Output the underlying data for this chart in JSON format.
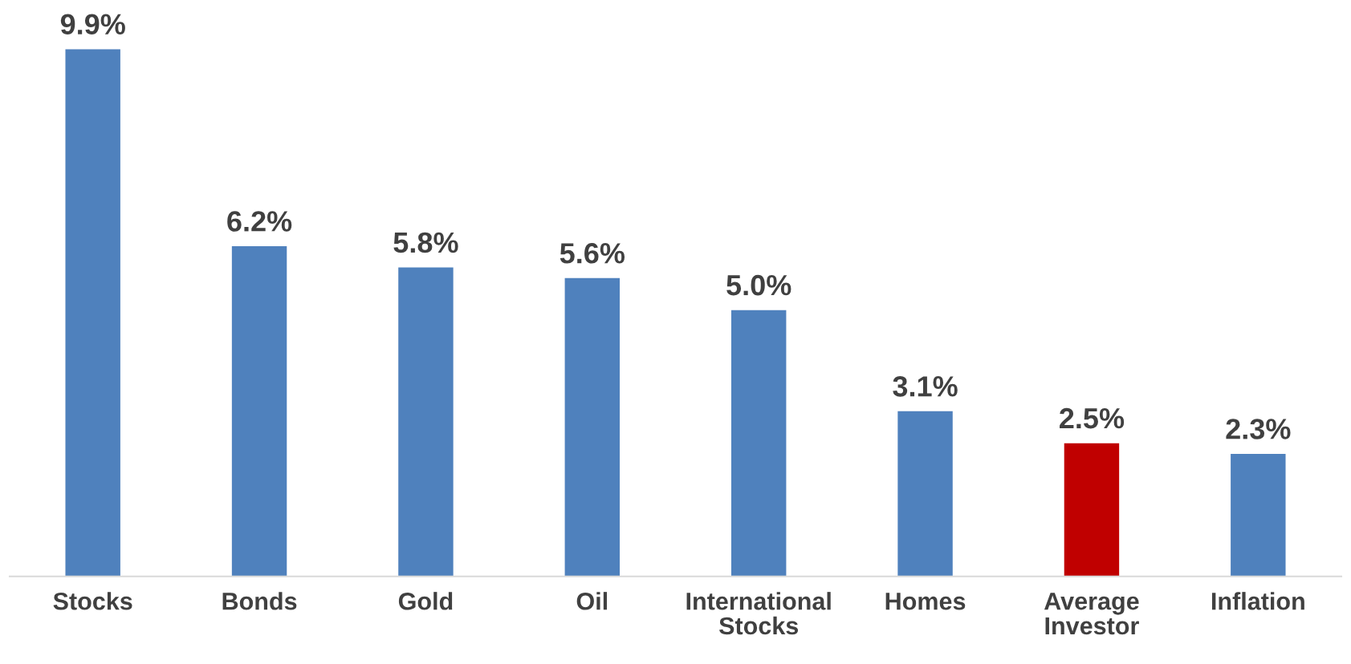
{
  "chart_data": {
    "type": "bar",
    "categories": [
      "Stocks",
      "Bonds",
      "Gold",
      "Oil",
      "International\nStocks",
      "Homes",
      "Average\nInvestor",
      "Inflation"
    ],
    "values": [
      9.9,
      6.2,
      5.8,
      5.6,
      5.0,
      3.1,
      2.5,
      2.3
    ],
    "colors": [
      "#4f81bd",
      "#4f81bd",
      "#4f81bd",
      "#4f81bd",
      "#4f81bd",
      "#4f81bd",
      "#c00000",
      "#4f81bd"
    ],
    "value_labels": [
      "9.9%",
      "6.2%",
      "5.8%",
      "5.6%",
      "5.0%",
      "3.1%",
      "2.5%",
      "2.3%"
    ],
    "grid": false,
    "legend": false
  }
}
